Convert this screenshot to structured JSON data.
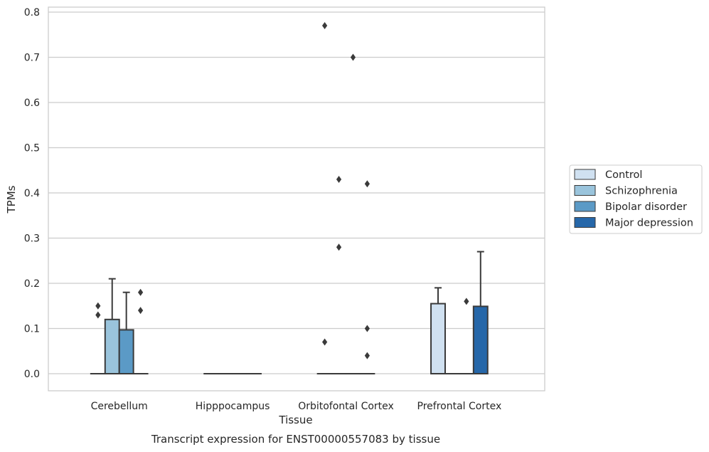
{
  "chart_data": {
    "type": "box",
    "title": "Transcript expression for ENST00000557083 by tissue",
    "xlabel": "Tissue",
    "ylabel": "TPMs",
    "ylim": [
      -0.038,
      0.81
    ],
    "yticks": [
      "0.0",
      "0.1",
      "0.2",
      "0.3",
      "0.4",
      "0.5",
      "0.6",
      "0.7",
      "0.8"
    ],
    "grid": "horizontal",
    "legend_position": "right",
    "categories": [
      "Cerebellum",
      "Hipppocampus",
      "Orbitofontal Cortex",
      "Prefrontal Cortex"
    ],
    "series": [
      {
        "name": "Control",
        "color": "#d0e1f1",
        "boxes": [
          {
            "q1": 0,
            "median": 0,
            "q3": 0,
            "whisker_low": 0,
            "whisker_high": 0,
            "outliers": [
              0.13,
              0.15
            ]
          },
          {
            "q1": 0,
            "median": 0,
            "q3": 0,
            "whisker_low": 0,
            "whisker_high": 0,
            "outliers": []
          },
          {
            "q1": 0,
            "median": 0,
            "q3": 0,
            "whisker_low": 0,
            "whisker_high": 0,
            "outliers": [
              0.07,
              0.77
            ]
          },
          {
            "q1": 0,
            "median": 0,
            "q3": 0.155,
            "whisker_low": 0,
            "whisker_high": 0.19,
            "outliers": []
          }
        ]
      },
      {
        "name": "Schizophrenia",
        "color": "#9ac4dc",
        "boxes": [
          {
            "q1": 0,
            "median": 0,
            "q3": 0.12,
            "whisker_low": 0,
            "whisker_high": 0.21,
            "outliers": []
          },
          {
            "q1": 0,
            "median": 0,
            "q3": 0,
            "whisker_low": 0,
            "whisker_high": 0,
            "outliers": []
          },
          {
            "q1": 0,
            "median": 0,
            "q3": 0,
            "whisker_low": 0,
            "whisker_high": 0,
            "outliers": [
              0.28,
              0.43
            ]
          },
          {
            "q1": 0,
            "median": 0,
            "q3": 0,
            "whisker_low": 0,
            "whisker_high": 0,
            "outliers": []
          }
        ]
      },
      {
        "name": "Bipolar disorder",
        "color": "#5b9ac6",
        "boxes": [
          {
            "q1": 0,
            "median": 0,
            "q3": 0.097,
            "whisker_low": 0,
            "whisker_high": 0.18,
            "outliers": []
          },
          {
            "q1": 0,
            "median": 0,
            "q3": 0,
            "whisker_low": 0,
            "whisker_high": 0,
            "outliers": []
          },
          {
            "q1": 0,
            "median": 0,
            "q3": 0,
            "whisker_low": 0,
            "whisker_high": 0,
            "outliers": [
              0.7
            ]
          },
          {
            "q1": 0,
            "median": 0,
            "q3": 0,
            "whisker_low": 0,
            "whisker_high": 0,
            "outliers": [
              0.16
            ]
          }
        ]
      },
      {
        "name": "Major depression",
        "color": "#2667a9",
        "boxes": [
          {
            "q1": 0,
            "median": 0,
            "q3": 0,
            "whisker_low": 0,
            "whisker_high": 0,
            "outliers": [
              0.14,
              0.18
            ]
          },
          {
            "q1": 0,
            "median": 0,
            "q3": 0,
            "whisker_low": 0,
            "whisker_high": 0,
            "outliers": []
          },
          {
            "q1": 0,
            "median": 0,
            "q3": 0,
            "whisker_low": 0,
            "whisker_high": 0,
            "outliers": [
              0.04,
              0.1,
              0.42
            ]
          },
          {
            "q1": 0,
            "median": 0,
            "q3": 0.149,
            "whisker_low": 0,
            "whisker_high": 0.27,
            "outliers": []
          }
        ]
      }
    ]
  }
}
